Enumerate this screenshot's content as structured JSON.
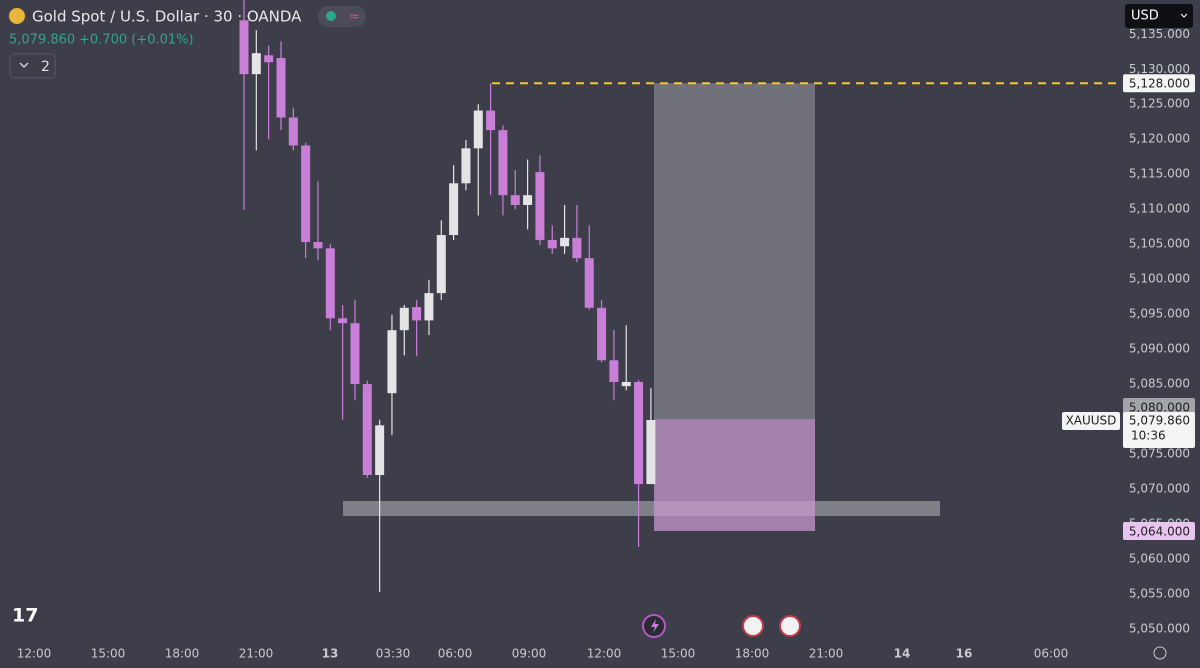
{
  "header": {
    "title": "Gold Spot / U.S. Dollar · 30 · OANDA",
    "price": "5,079.860",
    "change": "+0.700 (+0.01%)",
    "indicators": "2",
    "currency": "USD"
  },
  "chart_data": {
    "type": "candlestick",
    "up_color": "#e4e4e6",
    "down_color": "#c97ed8",
    "open": [
      5137,
      5129.3,
      5132,
      5131.6,
      5123.1,
      5119.1,
      5105.3,
      5104.4,
      5094.4,
      5093.7,
      5085,
      5072,
      5083.7,
      5092.7,
      5096,
      5094.1,
      5098,
      5106.3,
      5113.7,
      5118.7,
      5124.1,
      5121.3,
      5112,
      5110.6,
      5115.3,
      5105.6,
      5104.7,
      5105.9,
      5103,
      5095.9,
      5088.4,
      5084.7,
      5085.3,
      5070.7
    ],
    "high": [
      5140,
      5135.6,
      5133.4,
      5134,
      5124.5,
      5119.5,
      5114,
      5105,
      5096.3,
      5097,
      5085.5,
      5079.9,
      5094.9,
      5096.3,
      5097,
      5099.9,
      5108.4,
      5116.3,
      5119.9,
      5125,
      5128,
      5122,
      5115.6,
      5117.1,
      5117.7,
      5107.7,
      5110.6,
      5110.6,
      5107.7,
      5097,
      5092.7,
      5093.4,
      5085.6,
      5084.4
    ],
    "low": [
      5109.9,
      5118.4,
      5120,
      5121.3,
      5118.4,
      5103,
      5102.7,
      5092.7,
      5079.9,
      5082.7,
      5071.6,
      5055.3,
      5077.7,
      5089.1,
      5089,
      5092,
      5097,
      5105.6,
      5112.7,
      5109.1,
      5112,
      5109.1,
      5110,
      5107.1,
      5104.9,
      5103.6,
      5103.6,
      5102.4,
      5095.6,
      5088.1,
      5082.7,
      5084.1,
      5061.7,
      5070.7
    ],
    "close": [
      5129.3,
      5132.3,
      5131,
      5123.1,
      5119.1,
      5105.3,
      5104.4,
      5094.4,
      5093.7,
      5085,
      5072,
      5079.1,
      5092.7,
      5095.9,
      5094.1,
      5098,
      5106.3,
      5113.7,
      5118.7,
      5124.1,
      5121.3,
      5112,
      5110.6,
      5112,
      5105.6,
      5104.4,
      5105.9,
      5103,
      5095.9,
      5088.4,
      5085.3,
      5085.3,
      5070.7,
      5079.86
    ],
    "xtick_labels": [
      "12:00",
      "15:00",
      "18:00",
      "21:00",
      "13",
      "03:30",
      "06:00",
      "09:00",
      "12:00",
      "15:00",
      "18:00",
      "21:00",
      "14",
      "16",
      "06:00"
    ],
    "ylim": [
      5047.7,
      5139.9
    ],
    "yticks": [
      {
        "value": 5050,
        "label": "5,050.000"
      },
      {
        "value": 5055,
        "label": "5,055.000"
      },
      {
        "value": 5060,
        "label": "5,060.000"
      },
      {
        "value": 5065,
        "label": "5,065.000"
      },
      {
        "value": 5070,
        "label": "5,070.000"
      },
      {
        "value": 5075,
        "label": "5,075.000"
      },
      {
        "value": 5080,
        "label": "5,080.000"
      },
      {
        "value": 5085,
        "label": "5,085.000"
      },
      {
        "value": 5090,
        "label": "5,090.000"
      },
      {
        "value": 5095,
        "label": "5,095.000"
      },
      {
        "value": 5100,
        "label": "5,100.000"
      },
      {
        "value": 5105,
        "label": "5,105.000"
      },
      {
        "value": 5110,
        "label": "5,110.000"
      },
      {
        "value": 5115,
        "label": "5,115.000"
      },
      {
        "value": 5120,
        "label": "5,120.000"
      },
      {
        "value": 5125,
        "label": "5,125.000"
      },
      {
        "value": 5130,
        "label": "5,130.000"
      },
      {
        "value": 5135,
        "label": "5,135.000"
      }
    ],
    "target": {
      "value": 5128,
      "label": "5,128.000"
    },
    "entry": {
      "value": 5080,
      "label": "5,080.000"
    },
    "stop": {
      "value": 5064,
      "label": "5,064.000"
    },
    "last_price": {
      "value": 5079.86,
      "label": "5,079.860",
      "symbol": "XAUUSD",
      "countdown": "10:36"
    }
  }
}
